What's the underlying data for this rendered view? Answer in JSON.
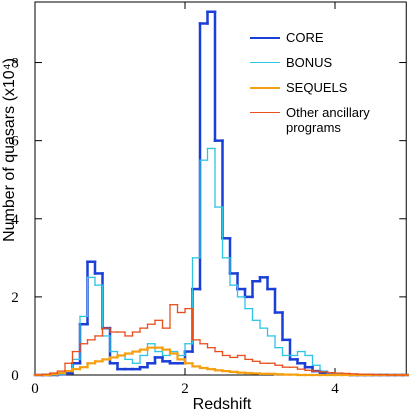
{
  "chart_data": {
    "type": "histogram",
    "xlabel": "Redshift",
    "ylabel": "Number of quasars (x10⁴)",
    "bins": [
      0,
      0.1,
      0.2,
      0.3,
      0.4,
      0.5,
      0.6,
      0.7,
      0.8,
      0.9,
      1.0,
      1.1,
      1.2,
      1.3,
      1.4,
      1.5,
      1.6,
      1.7,
      1.8,
      1.9,
      2.0,
      2.1,
      2.2,
      2.3,
      2.4,
      2.5,
      2.6,
      2.7,
      2.8,
      2.9,
      3.0,
      3.1,
      3.2,
      3.3,
      3.4,
      3.5,
      3.6,
      3.7,
      3.8,
      3.9,
      4.0,
      4.1,
      4.2,
      4.3,
      4.4,
      4.5,
      4.6,
      4.7,
      4.8,
      4.9,
      5.0
    ],
    "series": [
      {
        "name": "CORE",
        "color": "#1a3fd6",
        "width": 2.5,
        "values": [
          0,
          0,
          0,
          0.02,
          0.05,
          0.3,
          1.3,
          2.9,
          2.6,
          1.2,
          0.3,
          0.15,
          0.15,
          0.15,
          0.2,
          0.3,
          0.45,
          0.35,
          0.3,
          0.3,
          0.6,
          2.2,
          9.0,
          9.3,
          6.0,
          3.5,
          2.6,
          2.2,
          2.0,
          2.4,
          2.5,
          2.2,
          1.6,
          0.9,
          0.4,
          0.3,
          0.2,
          0.1,
          0.05,
          0.03,
          0.02,
          0.01,
          0,
          0,
          0,
          0,
          0,
          0,
          0,
          0
        ]
      },
      {
        "name": "BONUS",
        "color": "#2ec4e6",
        "width": 1.3,
        "values": [
          0,
          0,
          0,
          0.02,
          0.1,
          0.4,
          1.5,
          2.5,
          2.3,
          1.0,
          0.6,
          0.5,
          0.4,
          0.3,
          0.5,
          0.8,
          0.6,
          0.5,
          0.6,
          0.5,
          0.8,
          3.0,
          5.5,
          5.8,
          4.3,
          3.0,
          2.3,
          2.0,
          1.7,
          1.4,
          1.2,
          1.0,
          0.7,
          0.5,
          0.5,
          0.6,
          0.5,
          0.25,
          0.1,
          0.05,
          0.03,
          0.02,
          0,
          0,
          0,
          0,
          0,
          0,
          0,
          0
        ]
      },
      {
        "name": "SEQUELS",
        "color": "#f5a010",
        "width": 2.2,
        "values": [
          0,
          0,
          0.02,
          0.05,
          0.1,
          0.15,
          0.2,
          0.3,
          0.35,
          0.4,
          0.45,
          0.5,
          0.55,
          0.6,
          0.65,
          0.7,
          0.7,
          0.65,
          0.55,
          0.4,
          0.3,
          0.22,
          0.18,
          0.15,
          0.12,
          0.1,
          0.08,
          0.06,
          0.05,
          0.04,
          0.03,
          0.03,
          0.02,
          0.01,
          0.01,
          0,
          0,
          0,
          0,
          0,
          0,
          0,
          0,
          0,
          0,
          0,
          0,
          0,
          0,
          0
        ]
      },
      {
        "name": "Other ancillary programs",
        "color": "#e8501e",
        "width": 1.3,
        "values": [
          0,
          0.02,
          0.05,
          0.1,
          0.3,
          0.6,
          0.8,
          0.9,
          1.0,
          1.2,
          1.1,
          1.1,
          1.0,
          1.1,
          1.2,
          1.3,
          1.4,
          1.2,
          1.8,
          1.6,
          1.7,
          0.9,
          0.8,
          0.7,
          0.6,
          0.5,
          0.45,
          0.5,
          0.4,
          0.35,
          0.3,
          0.3,
          0.25,
          0.2,
          0.2,
          0.15,
          0.12,
          0.1,
          0.08,
          0.06,
          0.05,
          0.04,
          0.03,
          0.02,
          0.02,
          0.01,
          0.01,
          0,
          0,
          0
        ]
      }
    ],
    "xlim": [
      0,
      4.95
    ],
    "xticks": [
      0,
      2,
      4
    ],
    "ylim": [
      0,
      9.55
    ],
    "yticks": [
      0,
      2,
      4,
      6,
      8
    ],
    "legend": "upper right"
  }
}
